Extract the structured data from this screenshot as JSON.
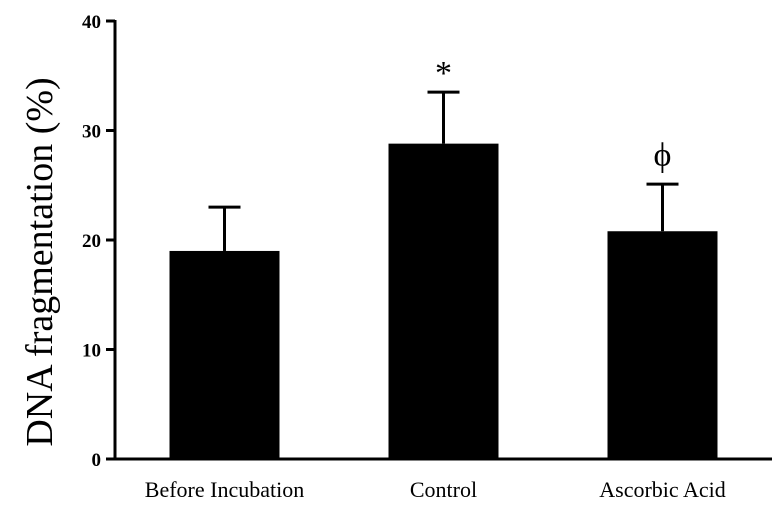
{
  "chart_data": {
    "type": "bar",
    "categories": [
      "Before Incubation",
      "Control",
      "Ascorbic Acid"
    ],
    "values": [
      19.0,
      28.8,
      20.8
    ],
    "errors": [
      4.0,
      4.7,
      4.3
    ],
    "annotations": [
      "",
      "*",
      "ϕ"
    ],
    "ylabel": "DNA  fragmentation (%)",
    "xlabel": "",
    "ylim": [
      0,
      40
    ],
    "yticks": [
      0,
      10,
      20,
      30,
      40
    ],
    "grid": false,
    "bar_color": "#000000"
  }
}
